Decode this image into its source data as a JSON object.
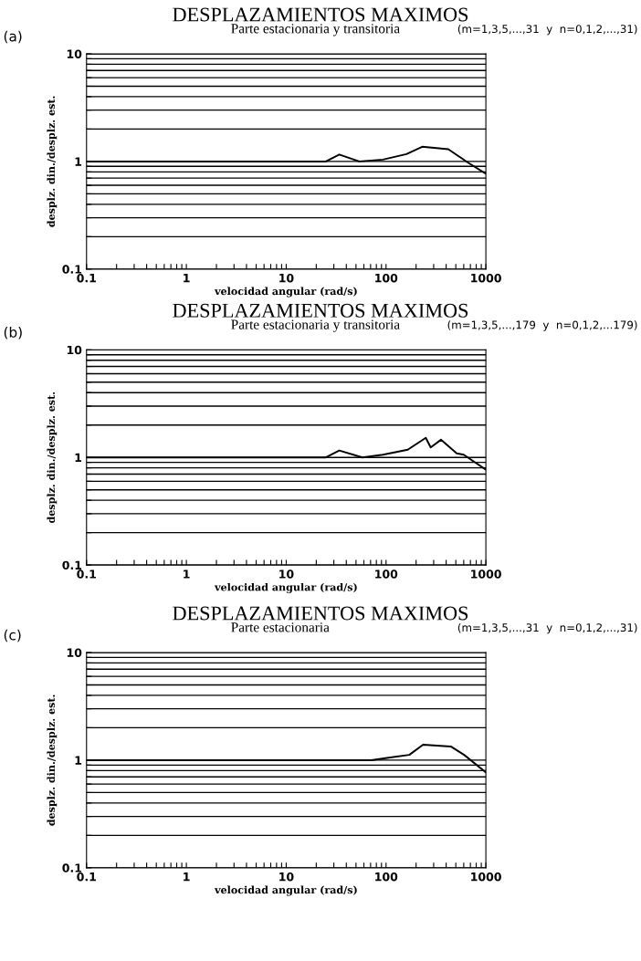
{
  "chart_data": [
    {
      "type": "line",
      "title": "DESPLAZAMIENTOS MAXIMOS",
      "subtitle": "Parte estacionaria y transitoria",
      "xlabel": "velocidad angular (rad/s)",
      "ylabel": "desplz. din./desplz. est.",
      "annotations": [
        "(a)",
        "(m=1,3,5,...,31  y  n=0,1,2,...,31)"
      ],
      "log": "xy",
      "grid": "y",
      "xlim": [
        0.1,
        1000
      ],
      "ylim": [
        0.1,
        10
      ],
      "xticks": [
        0.1,
        {
          "value": 0.2,
          "label": null
        },
        {
          "value": 0.3,
          "label": null
        },
        {
          "value": 0.4,
          "label": null
        },
        {
          "value": 0.5,
          "label": null
        },
        {
          "value": 0.6,
          "label": null
        },
        {
          "value": 0.7,
          "label": null
        },
        {
          "value": 0.8,
          "label": null
        },
        {
          "value": 0.9,
          "label": null
        },
        1,
        {
          "value": 2,
          "label": null
        },
        {
          "value": 3,
          "label": null
        },
        {
          "value": 4,
          "label": null
        },
        {
          "value": 5,
          "label": null
        },
        {
          "value": 6,
          "label": null
        },
        {
          "value": 7,
          "label": null
        },
        {
          "value": 8,
          "label": null
        },
        {
          "value": 9,
          "label": null
        },
        10,
        {
          "value": 20,
          "label": null
        },
        {
          "value": 30,
          "label": null
        },
        {
          "value": 40,
          "label": null
        },
        {
          "value": 50,
          "label": null
        },
        {
          "value": 60,
          "label": null
        },
        {
          "value": 70,
          "label": null
        },
        {
          "value": 80,
          "label": null
        },
        {
          "value": 90,
          "label": null
        },
        100,
        {
          "value": 200,
          "label": null
        },
        {
          "value": 300,
          "label": null
        },
        {
          "value": 400,
          "label": null
        },
        {
          "value": 500,
          "label": null
        },
        {
          "value": 600,
          "label": null
        },
        {
          "value": 700,
          "label": null
        },
        {
          "value": 800,
          "label": null
        },
        {
          "value": 900,
          "label": null
        },
        1000
      ],
      "yticks": [
        0.1,
        {
          "value": 0.2,
          "label": null
        },
        {
          "value": 0.3,
          "label": null
        },
        {
          "value": 0.4,
          "label": null
        },
        {
          "value": 0.5,
          "label": null
        },
        {
          "value": 0.6,
          "label": null
        },
        {
          "value": 0.7,
          "label": null
        },
        {
          "value": 0.8,
          "label": null
        },
        {
          "value": 0.9,
          "label": null
        },
        1,
        {
          "value": 2,
          "label": null
        },
        {
          "value": 3,
          "label": null
        },
        {
          "value": 4,
          "label": null
        },
        {
          "value": 5,
          "label": null
        },
        {
          "value": 6,
          "label": null
        },
        {
          "value": 7,
          "label": null
        },
        {
          "value": 8,
          "label": null
        },
        {
          "value": 9,
          "label": null
        },
        10
      ],
      "series": [
        {
          "color": "#000000",
          "x": [
            0.1,
            25,
            34,
            54,
            93,
            160,
            230,
            420,
            680,
            1000
          ],
          "values": [
            1.0,
            1.0,
            1.16,
            1.0,
            1.04,
            1.17,
            1.37,
            1.3,
            0.96,
            0.77
          ]
        }
      ]
    },
    {
      "type": "line",
      "title": "DESPLAZAMIENTOS MAXIMOS",
      "subtitle": "Parte estacionaria y transitoria",
      "xlabel": "velocidad angular (rad/s)",
      "ylabel": "desplz. din./desplz. est.",
      "annotations": [
        "(b)",
        "(m=1,3,5,...,179  y  n=0,1,2,...179)"
      ],
      "log": "xy",
      "grid": "y",
      "xlim": [
        0.1,
        1000
      ],
      "ylim": [
        0.1,
        10
      ],
      "xticks": [
        0.1,
        {
          "value": 0.2,
          "label": null
        },
        {
          "value": 0.3,
          "label": null
        },
        {
          "value": 0.4,
          "label": null
        },
        {
          "value": 0.5,
          "label": null
        },
        {
          "value": 0.6,
          "label": null
        },
        {
          "value": 0.7,
          "label": null
        },
        {
          "value": 0.8,
          "label": null
        },
        {
          "value": 0.9,
          "label": null
        },
        1,
        {
          "value": 2,
          "label": null
        },
        {
          "value": 3,
          "label": null
        },
        {
          "value": 4,
          "label": null
        },
        {
          "value": 5,
          "label": null
        },
        {
          "value": 6,
          "label": null
        },
        {
          "value": 7,
          "label": null
        },
        {
          "value": 8,
          "label": null
        },
        {
          "value": 9,
          "label": null
        },
        10,
        {
          "value": 20,
          "label": null
        },
        {
          "value": 30,
          "label": null
        },
        {
          "value": 40,
          "label": null
        },
        {
          "value": 50,
          "label": null
        },
        {
          "value": 60,
          "label": null
        },
        {
          "value": 70,
          "label": null
        },
        {
          "value": 80,
          "label": null
        },
        {
          "value": 90,
          "label": null
        },
        100,
        {
          "value": 200,
          "label": null
        },
        {
          "value": 300,
          "label": null
        },
        {
          "value": 400,
          "label": null
        },
        {
          "value": 500,
          "label": null
        },
        {
          "value": 600,
          "label": null
        },
        {
          "value": 700,
          "label": null
        },
        {
          "value": 800,
          "label": null
        },
        {
          "value": 900,
          "label": null
        },
        1000
      ],
      "yticks": [
        0.1,
        {
          "value": 0.2,
          "label": null
        },
        {
          "value": 0.3,
          "label": null
        },
        {
          "value": 0.4,
          "label": null
        },
        {
          "value": 0.5,
          "label": null
        },
        {
          "value": 0.6,
          "label": null
        },
        {
          "value": 0.7,
          "label": null
        },
        {
          "value": 0.8,
          "label": null
        },
        {
          "value": 0.9,
          "label": null
        },
        1,
        {
          "value": 2,
          "label": null
        },
        {
          "value": 3,
          "label": null
        },
        {
          "value": 4,
          "label": null
        },
        {
          "value": 5,
          "label": null
        },
        {
          "value": 6,
          "label": null
        },
        {
          "value": 7,
          "label": null
        },
        {
          "value": 8,
          "label": null
        },
        {
          "value": 9,
          "label": null
        },
        10
      ],
      "series": [
        {
          "color": "#000000",
          "x": [
            0.1,
            25,
            34,
            58,
            93,
            165,
            250,
            280,
            355,
            510,
            600,
            1000
          ],
          "values": [
            1.0,
            1.0,
            1.16,
            1.0,
            1.06,
            1.18,
            1.52,
            1.24,
            1.46,
            1.09,
            1.06,
            0.77
          ]
        }
      ]
    },
    {
      "type": "line",
      "title": "DESPLAZAMIENTOS MAXIMOS",
      "subtitle": "Parte estacionaria",
      "xlabel": "velocidad angular (rad/s)",
      "ylabel": "desplz. din./desplz. est.",
      "annotations": [
        "(c)",
        "(m=1,3,5,...,31  y  n=0,1,2,...,31)"
      ],
      "log": "xy",
      "grid": "y",
      "xlim": [
        0.1,
        1000
      ],
      "ylim": [
        0.1,
        10
      ],
      "xticks": [
        0.1,
        {
          "value": 0.2,
          "label": null
        },
        {
          "value": 0.3,
          "label": null
        },
        {
          "value": 0.4,
          "label": null
        },
        {
          "value": 0.5,
          "label": null
        },
        {
          "value": 0.6,
          "label": null
        },
        {
          "value": 0.7,
          "label": null
        },
        {
          "value": 0.8,
          "label": null
        },
        {
          "value": 0.9,
          "label": null
        },
        1,
        {
          "value": 2,
          "label": null
        },
        {
          "value": 3,
          "label": null
        },
        {
          "value": 4,
          "label": null
        },
        {
          "value": 5,
          "label": null
        },
        {
          "value": 6,
          "label": null
        },
        {
          "value": 7,
          "label": null
        },
        {
          "value": 8,
          "label": null
        },
        {
          "value": 9,
          "label": null
        },
        10,
        {
          "value": 20,
          "label": null
        },
        {
          "value": 30,
          "label": null
        },
        {
          "value": 40,
          "label": null
        },
        {
          "value": 50,
          "label": null
        },
        {
          "value": 60,
          "label": null
        },
        {
          "value": 70,
          "label": null
        },
        {
          "value": 80,
          "label": null
        },
        {
          "value": 90,
          "label": null
        },
        100,
        {
          "value": 200,
          "label": null
        },
        {
          "value": 300,
          "label": null
        },
        {
          "value": 400,
          "label": null
        },
        {
          "value": 500,
          "label": null
        },
        {
          "value": 600,
          "label": null
        },
        {
          "value": 700,
          "label": null
        },
        {
          "value": 800,
          "label": null
        },
        {
          "value": 900,
          "label": null
        },
        1000
      ],
      "yticks": [
        0.1,
        {
          "value": 0.2,
          "label": null
        },
        {
          "value": 0.3,
          "label": null
        },
        {
          "value": 0.4,
          "label": null
        },
        {
          "value": 0.5,
          "label": null
        },
        {
          "value": 0.6,
          "label": null
        },
        {
          "value": 0.7,
          "label": null
        },
        {
          "value": 0.8,
          "label": null
        },
        {
          "value": 0.9,
          "label": null
        },
        1,
        {
          "value": 2,
          "label": null
        },
        {
          "value": 3,
          "label": null
        },
        {
          "value": 4,
          "label": null
        },
        {
          "value": 5,
          "label": null
        },
        {
          "value": 6,
          "label": null
        },
        {
          "value": 7,
          "label": null
        },
        {
          "value": 8,
          "label": null
        },
        {
          "value": 9,
          "label": null
        },
        10
      ],
      "series": [
        {
          "color": "#000000",
          "x": [
            0.1,
            71,
            110,
            171,
            235,
            445,
            605,
            1000
          ],
          "values": [
            1.0,
            1.0,
            1.06,
            1.12,
            1.39,
            1.34,
            1.12,
            0.77
          ]
        }
      ]
    }
  ]
}
